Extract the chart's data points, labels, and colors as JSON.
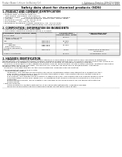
{
  "title": "Safety data sheet for chemical products (SDS)",
  "header_left": "Product Name: Lithium Ion Battery Cell",
  "header_right_line1": "Substance Number: SRS-001-00010",
  "header_right_line2": "Establishment / Revision: Dec. 7, 2010",
  "section1_title": "1. PRODUCT AND COMPANY IDENTIFICATION",
  "section1_lines": [
    " • Product name: Lithium Ion Battery Cell",
    " • Product code: Cylindrical type cell",
    "     (18F 66600, 18F 66500, 18F 66500A)",
    " • Company name:       Sanyo Electric Co., Ltd., Mobile Energy Company",
    " • Address:              2001 Kamionakamura, Sumoto-City, Hyogo, Japan",
    " • Telephone number:   +81-799-26-4111",
    " • Fax number:   +81-799-26-4129",
    " • Emergency telephone number (Weekday) +81-799-26-2662",
    "                                       (Night and holiday) +81-799-26-2031"
  ],
  "section2_title": "2. COMPOSITION / INFORMATION ON INGREDIENTS",
  "section2_sub1": " • Substance or preparation: Preparation",
  "section2_sub2": " • Information about the chemical nature of product:",
  "table_headers": [
    "Information about chemical name",
    "CAS number",
    "Concentration /\nConcentration range",
    "Classification and\nhazard labeling"
  ],
  "table_sub_header": "Several name",
  "table_rows": [
    [
      "Lithium cobalt oxide\n(LiMn-Co-NiO2)",
      "-",
      "30-60%",
      ""
    ],
    [
      "Iron",
      "7439-89-6",
      "10-25%",
      ""
    ],
    [
      "Aluminum",
      "7429-90-5",
      "2-5%",
      ""
    ],
    [
      "Graphite\n(Flake graphite-L)\n(Artificial graphite-L)",
      "7782-42-5\n7782-42-5",
      "10-25%",
      ""
    ],
    [
      "Copper",
      "7440-50-8",
      "5-15%",
      "Sensitization of the skin\ngroup No.2"
    ],
    [
      "Organic electrolyte",
      "-",
      "10-20%",
      "Inflammable liquid"
    ]
  ],
  "section3_title": "3. HAZARDS IDENTIFICATION",
  "section3_lines": [
    "For the battery cell, chemical materials are stored in a hermetically sealed metal case, designed to withstand",
    "temperatures and produced electro-chemical reactions during normal use. As a result, during normal use, there is no",
    "physical danger of ignition or explosion and there is no danger of hazardous materials leakage.",
    "   However, if exposed to a fire, added mechanical shocks, decomposed, unless electro-chemical reactions take place,",
    "the gas inside cannot be operated. The battery cell case will be breached of fire/penetrate, hazardous",
    "materials may be released.",
    "   Moreover, if heated strongly by the surrounding fire, solid gas may be emitted.",
    "",
    " • Most important hazard and effects:",
    "     Human health effects:",
    "        Inhalation: The release of the electrolyte has an anesthesia action and stimulates a respiratory tract.",
    "        Skin contact: The release of the electrolyte stimulates a skin. The electrolyte skin contact causes a",
    "        sore and stimulation on the skin.",
    "        Eye contact: The release of the electrolyte stimulates eyes. The electrolyte eye contact causes a sore",
    "        and stimulation on the eye. Especially, a substance that causes a strong inflammation of the eye is",
    "        contained.",
    "        Environmental effects: Since a battery cell remains in the environment, do not throw out it into the",
    "        environment.",
    "",
    " • Specific hazards:",
    "        If the electrolyte contacts with water, it will generate detrimental hydrogen fluoride.",
    "        Since the used electrolyte is inflammable liquid, do not bring close to fire."
  ],
  "bg_color": "#ffffff",
  "text_color": "#111111",
  "gray_text": "#666666",
  "header_line_color": "#333333",
  "table_border_color": "#888888",
  "table_header_bg": "#e8e8e8"
}
